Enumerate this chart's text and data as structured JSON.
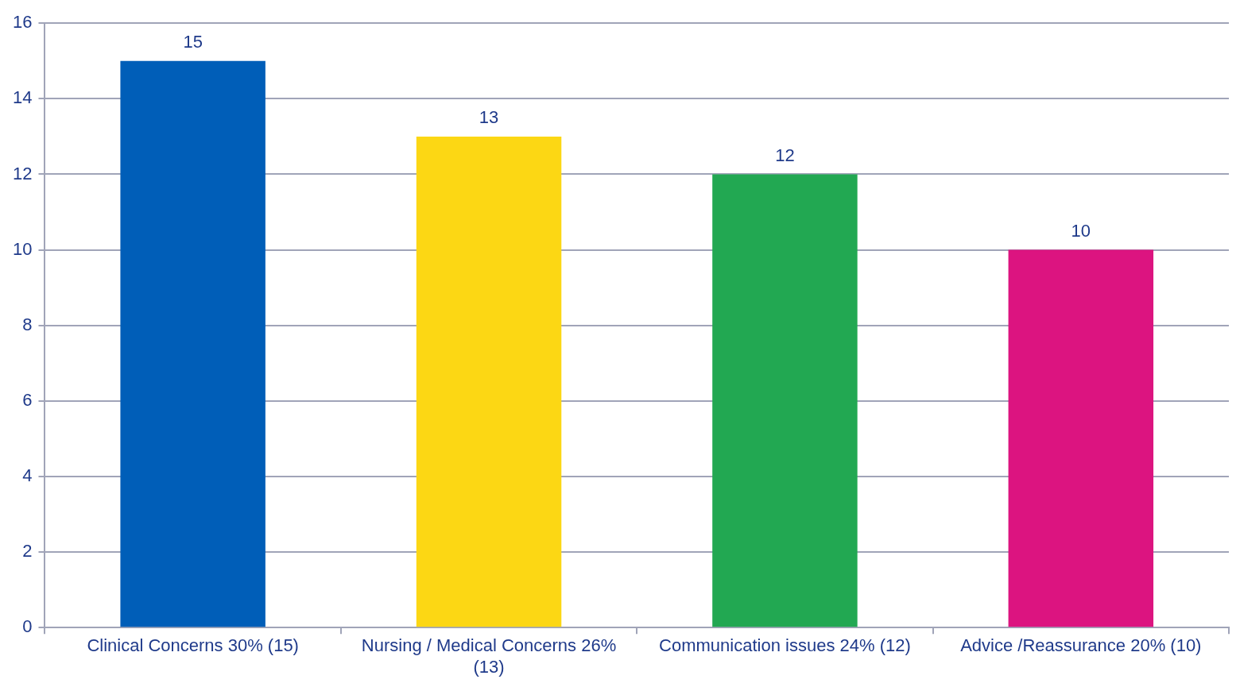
{
  "chart_data": {
    "type": "bar",
    "categories": [
      "Clinical Concerns 30% (15)",
      "Nursing / Medical Concerns 26% (13)",
      "Communication issues 24% (12)",
      "Advice /Reassurance 20% (10)"
    ],
    "values": [
      15,
      13,
      12,
      10
    ],
    "colors": [
      "#005eb8",
      "#fcd714",
      "#22a852",
      "#dc1480"
    ],
    "ylim": [
      0,
      16
    ],
    "yticks": [
      0,
      2,
      4,
      6,
      8,
      10,
      12,
      14,
      16
    ],
    "grid": "y",
    "data_labels": true,
    "legend": false
  }
}
